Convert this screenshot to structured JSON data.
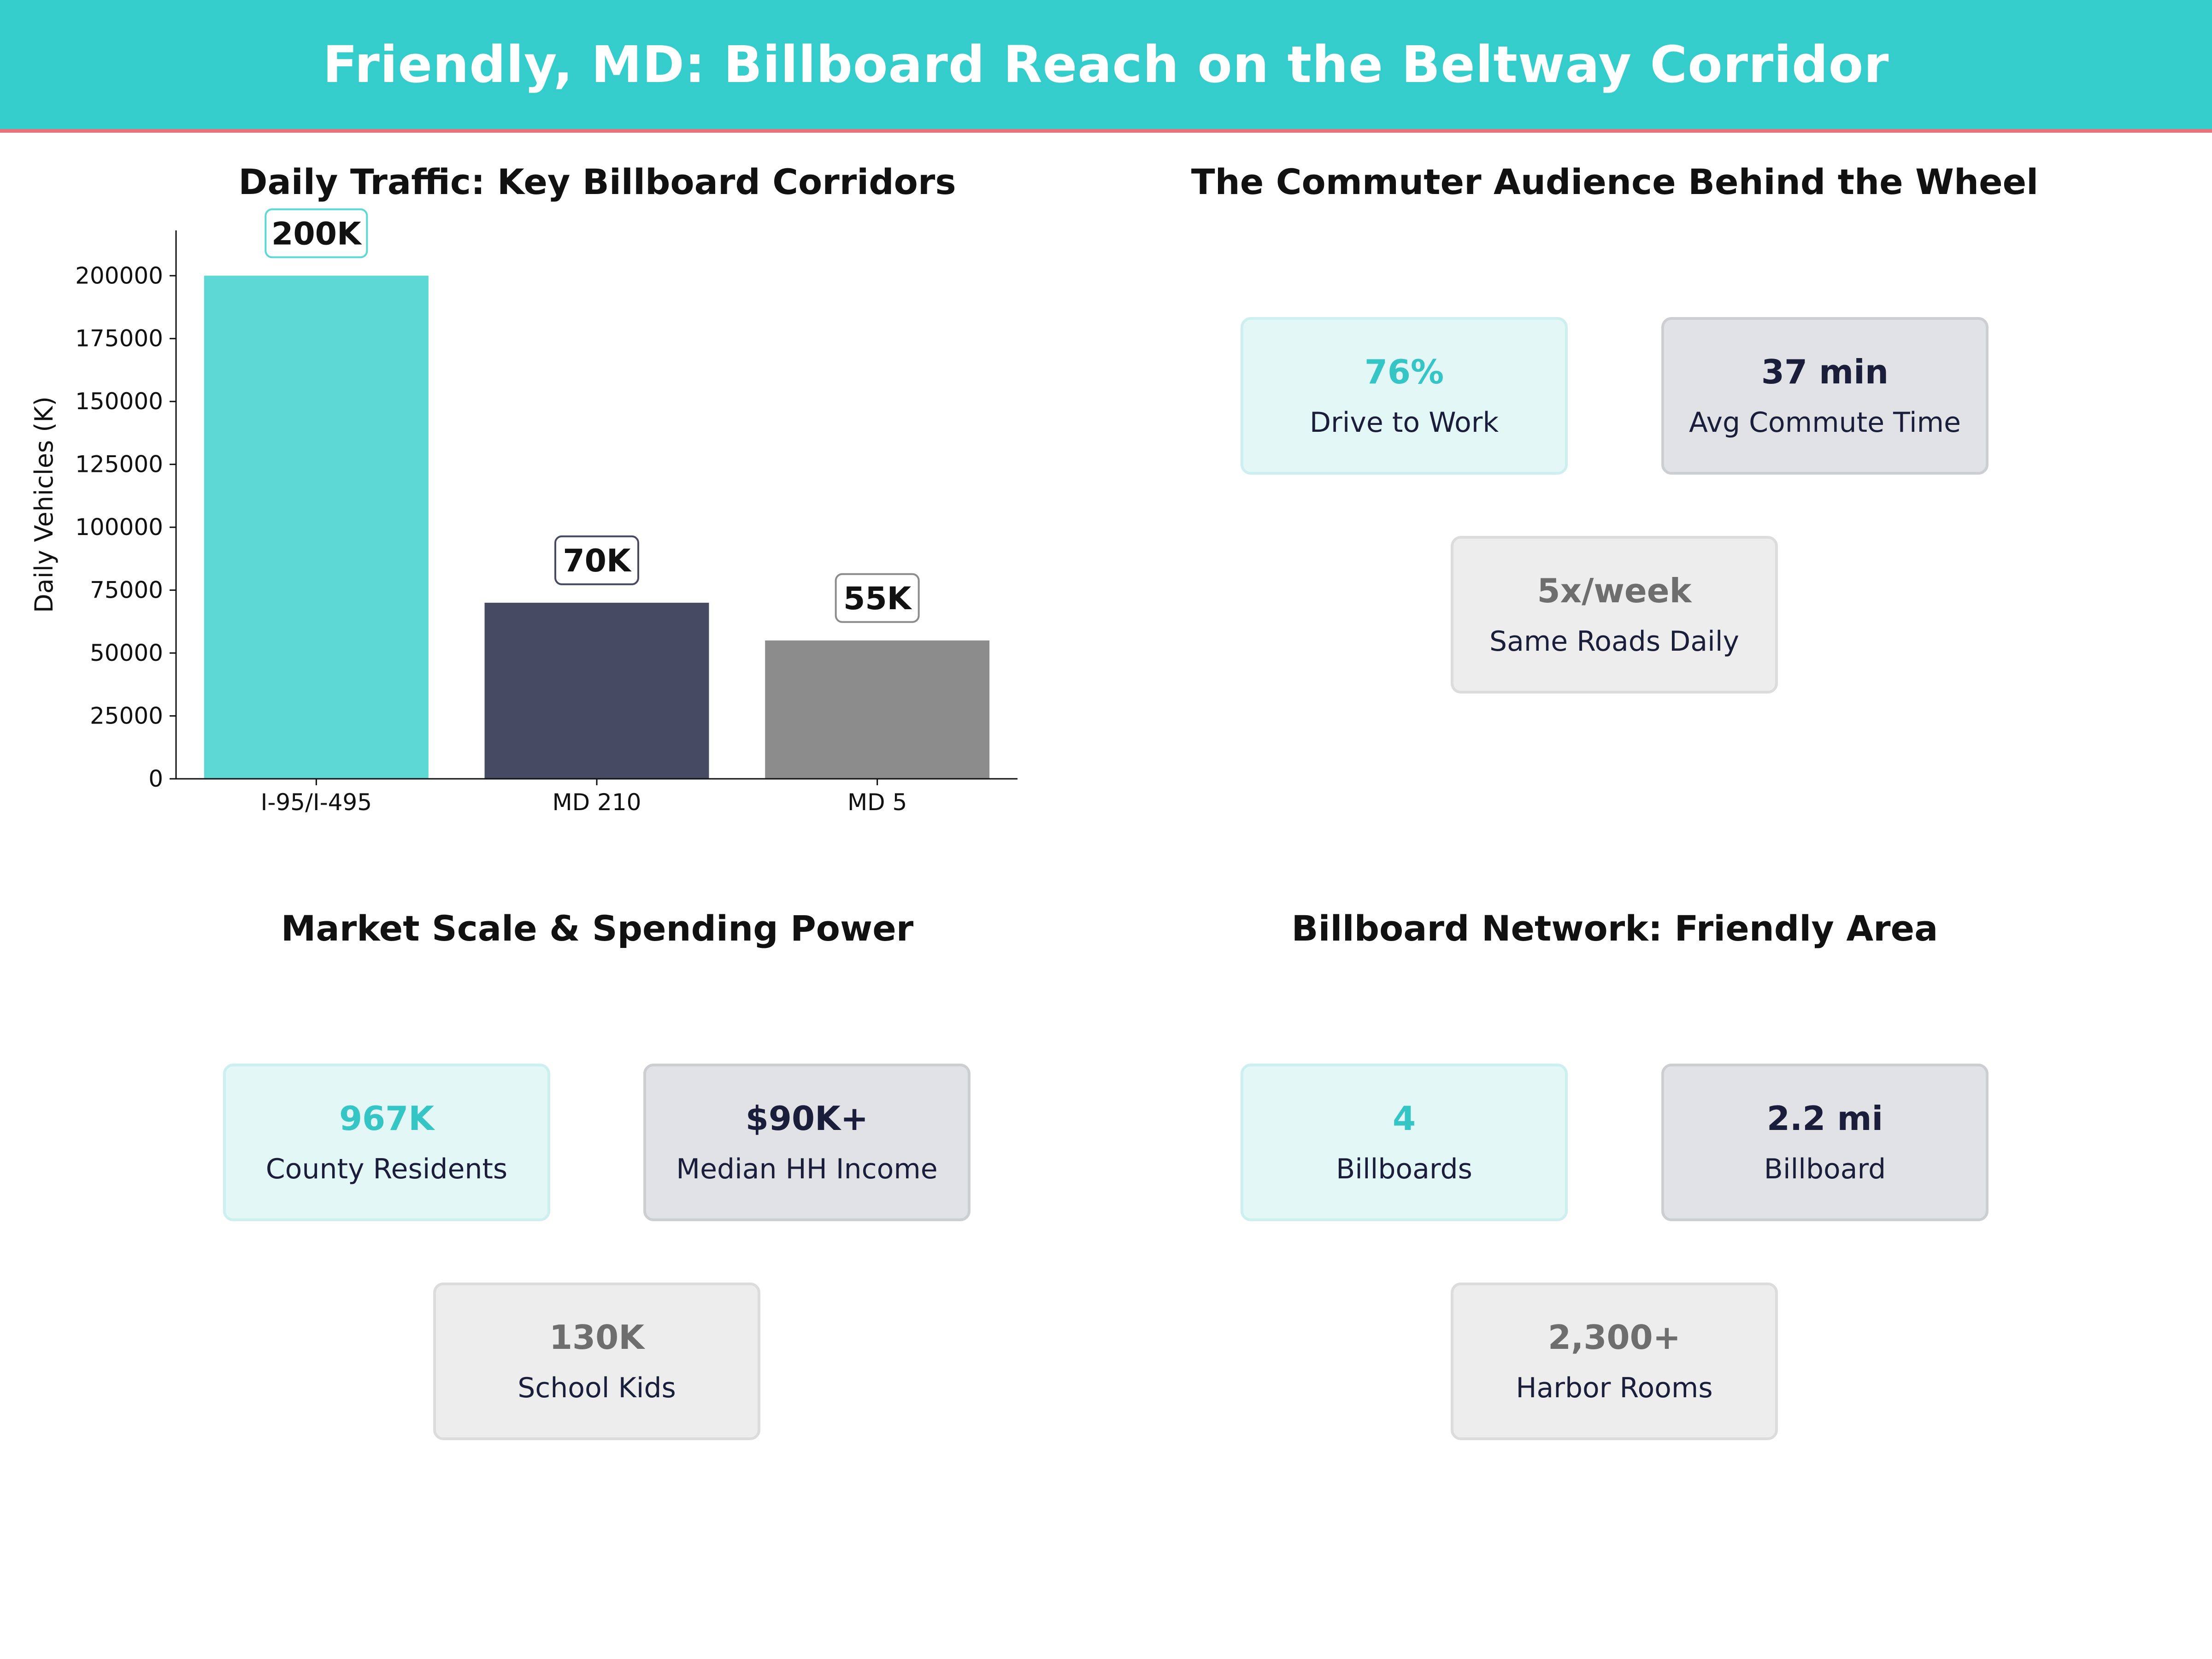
{
  "header": {
    "title": "Friendly, MD: Billboard Reach on the Beltway Corridor"
  },
  "colors": {
    "header_bg": "#35CCCC",
    "header_rule": "#E8737D",
    "teal": "#5DD8D4",
    "navy": "#474B62",
    "gray": "#8C8C8C"
  },
  "chart_data": {
    "type": "bar",
    "title": "Daily Traffic: Key Billboard Corridors",
    "xlabel": "",
    "ylabel": "Daily Vehicles (K)",
    "categories": [
      "I-95/I-495",
      "MD 210",
      "MD 5"
    ],
    "values": [
      200000,
      70000,
      55000
    ],
    "data_labels": [
      "200K",
      "70K",
      "55K"
    ],
    "bar_colors": [
      "#5DD8D4",
      "#474B62",
      "#8C8C8C"
    ],
    "label_border_colors": [
      "#5DD8D4",
      "#474B62",
      "#8C8C8C"
    ],
    "yticks": [
      0,
      25000,
      50000,
      75000,
      100000,
      125000,
      150000,
      175000,
      200000
    ],
    "ylim": [
      0,
      218000
    ],
    "grid": false,
    "legend": "none"
  },
  "panels": {
    "commuter": {
      "title": "The Commuter Audience Behind the Wheel",
      "cards": [
        {
          "value": "76%",
          "label": "Drive to Work"
        },
        {
          "value": "37 min",
          "label": "Avg Commute Time"
        },
        {
          "value": "5x/week",
          "label": "Same Roads Daily"
        }
      ]
    },
    "market": {
      "title": "Market Scale & Spending Power",
      "cards": [
        {
          "value": "967K",
          "label": "County Residents"
        },
        {
          "value": "$90K+",
          "label": "Median HH Income"
        },
        {
          "value": "130K",
          "label": "School Kids"
        }
      ]
    },
    "network": {
      "title": "Billboard Network: Friendly Area",
      "cards": [
        {
          "value": "4",
          "label": "Billboards"
        },
        {
          "value": "2.2 mi",
          "label": "Billboard"
        },
        {
          "value": "2,300+",
          "label": "Harbor Rooms"
        }
      ]
    }
  }
}
